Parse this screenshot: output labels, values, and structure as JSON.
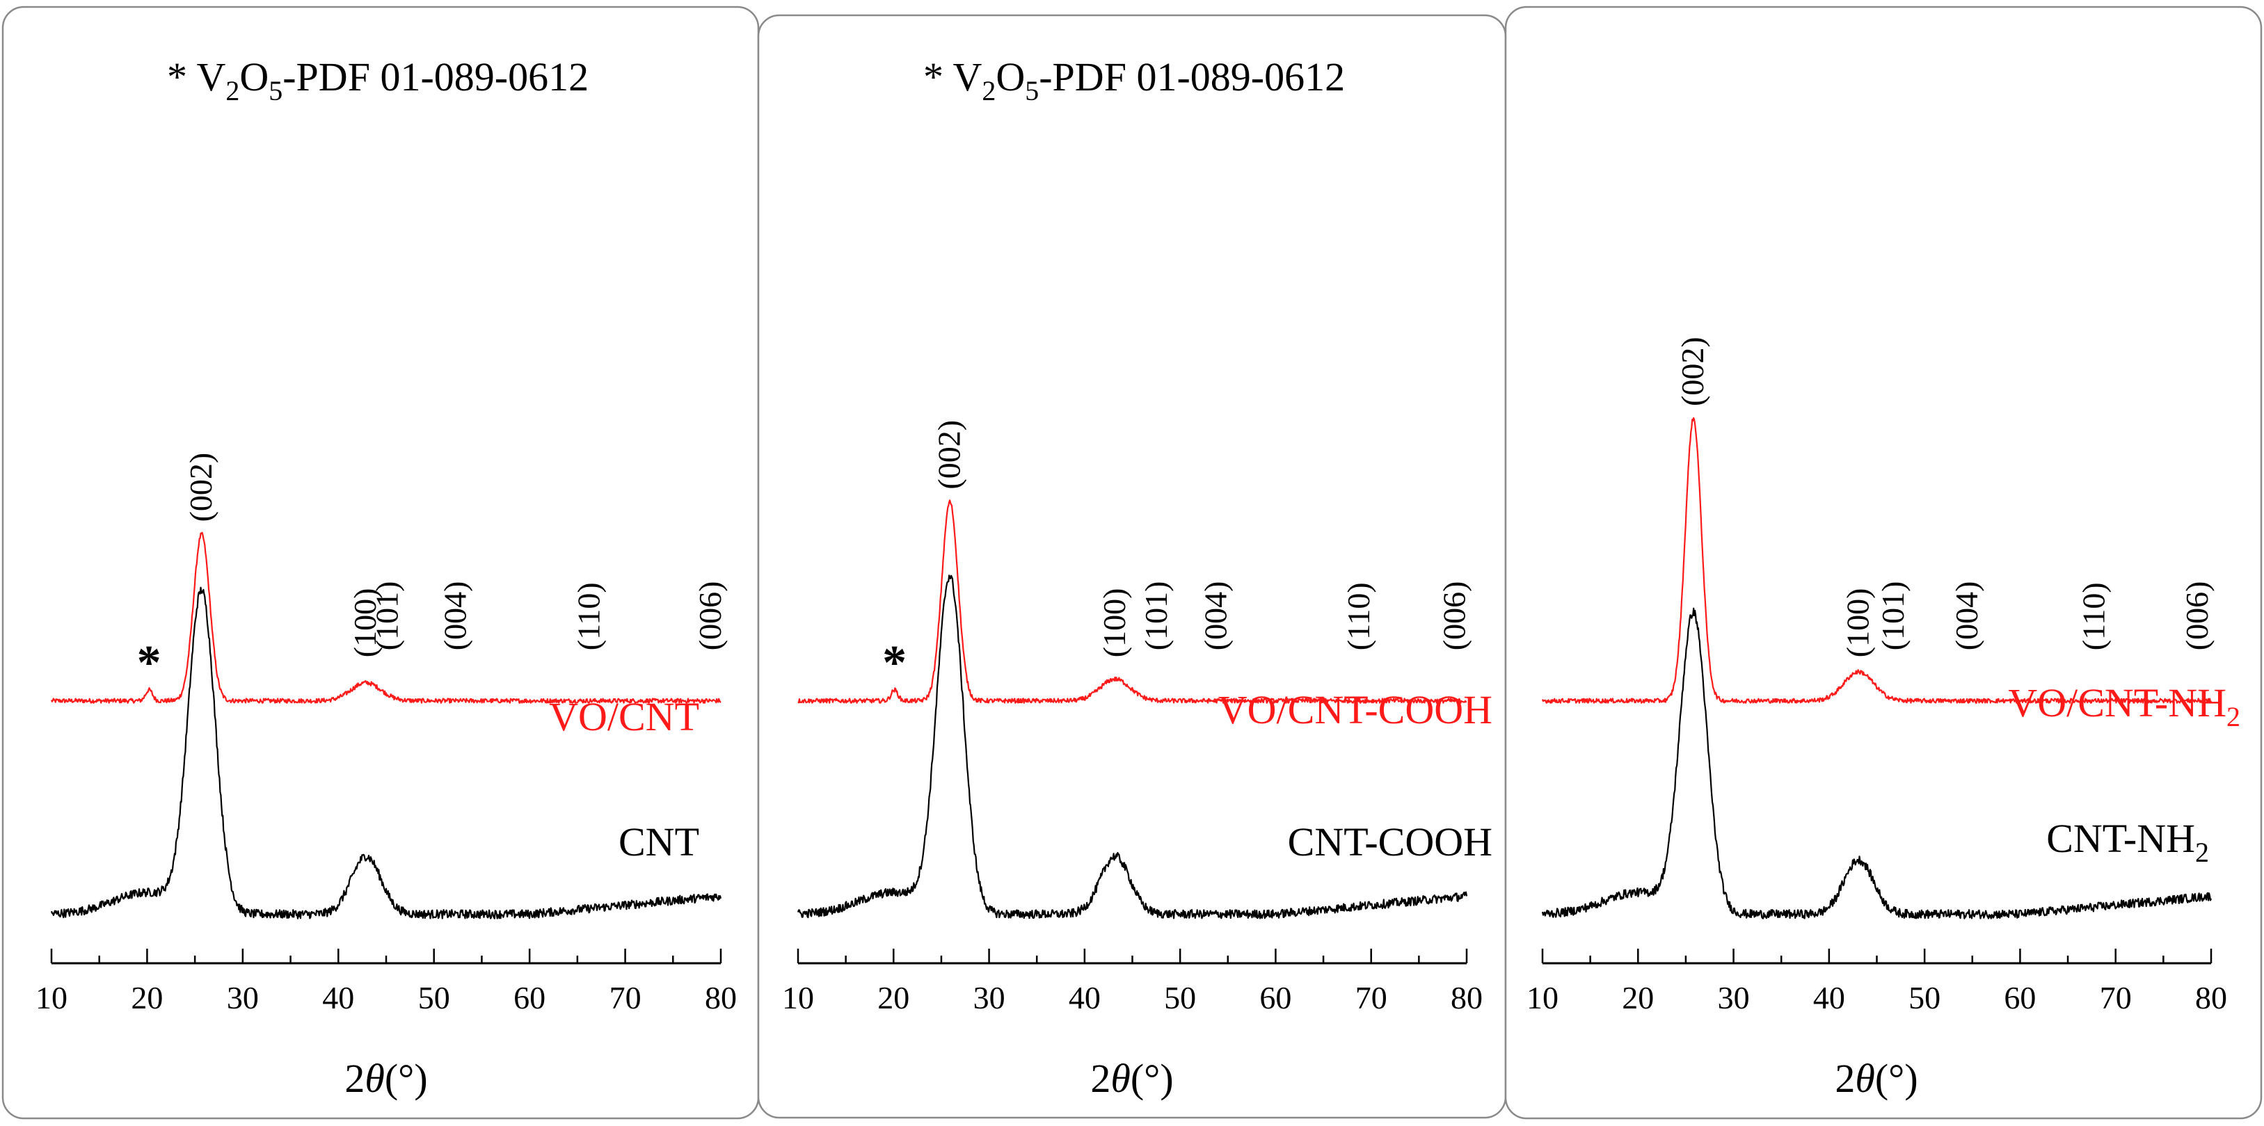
{
  "colors": {
    "vo_trace": "#ff1a1a",
    "cnt_trace": "#000000",
    "frame": "#8a8a8a"
  },
  "chart_data": [
    {
      "type": "line",
      "title": "* V2O5-PDF 01-089-0612",
      "title_parts": {
        "prefix": "* V",
        "sub1": "2",
        "mid": "O",
        "sub2": "5",
        "suffix": "-PDF 01-089-0612"
      },
      "xlabel": "2θ(°)",
      "xlabel_parts": {
        "pre": "2",
        "theta": "θ",
        "post": "(°)"
      },
      "xlim": [
        10,
        80
      ],
      "xticks": [
        10,
        20,
        30,
        40,
        50,
        60,
        70,
        80
      ],
      "series": [
        {
          "name": "VO/CNT",
          "name_parts": {
            "main": "VO/CNT",
            "sub": ""
          },
          "color": "#ff1a1a",
          "offset": 0.62,
          "peak_002": 0.46,
          "peak_100": 0.05,
          "extra": [],
          "noise": 0.006
        },
        {
          "name": "CNT",
          "name_parts": {
            "main": "CNT",
            "sub": ""
          },
          "color": "#000000",
          "offset": 0.0,
          "peak_002": 0.88,
          "peak_100": 0.16,
          "extra": [],
          "noise": 0.012
        }
      ],
      "reflections": [
        {
          "label": "(002)",
          "x": 25.7
        },
        {
          "label": "(100)",
          "x": 42.9
        },
        {
          "label": "(101)",
          "x": 45.2
        },
        {
          "label": "(004)",
          "x": 52.3
        },
        {
          "label": "(110)",
          "x": 66.3
        },
        {
          "label": "(006)",
          "x": 79.0
        }
      ],
      "v2o5_marker": {
        "label": "*",
        "x": 20.2
      }
    },
    {
      "type": "line",
      "title": "* V2O5-PDF 01-089-0612",
      "title_parts": {
        "prefix": "* V",
        "sub1": "2",
        "mid": "O",
        "sub2": "5",
        "suffix": "-PDF 01-089-0612"
      },
      "xlabel": "2θ(°)",
      "xlabel_parts": {
        "pre": "2",
        "theta": "θ",
        "post": "(°)"
      },
      "xlim": [
        10,
        80
      ],
      "xticks": [
        10,
        20,
        30,
        40,
        50,
        60,
        70,
        80
      ],
      "series": [
        {
          "name": "VO/CNT-COOH",
          "name_parts": {
            "main": "VO/CNT-COOH",
            "sub": ""
          },
          "color": "#ff1a1a",
          "offset": 0.62,
          "peak_002": 0.55,
          "peak_100": 0.06,
          "extra": [],
          "noise": 0.006
        },
        {
          "name": "CNT-COOH",
          "name_parts": {
            "main": "CNT-COOH",
            "sub": ""
          },
          "color": "#000000",
          "offset": 0.0,
          "peak_002": 0.92,
          "peak_100": 0.16,
          "extra": [],
          "noise": 0.012
        }
      ],
      "reflections": [
        {
          "label": "(002)",
          "x": 25.9
        },
        {
          "label": "(100)",
          "x": 43.2
        },
        {
          "label": "(101)",
          "x": 47.6
        },
        {
          "label": "(004)",
          "x": 53.8
        },
        {
          "label": "(110)",
          "x": 68.8
        },
        {
          "label": "(006)",
          "x": 78.8
        }
      ],
      "v2o5_marker": {
        "label": "*",
        "x": 20.1
      }
    },
    {
      "type": "line",
      "xlabel": "2θ(°)",
      "xlabel_parts": {
        "pre": "2",
        "theta": "θ",
        "post": "(°)"
      },
      "xlim": [
        10,
        80
      ],
      "xticks": [
        10,
        20,
        30,
        40,
        50,
        60,
        70,
        80
      ],
      "series": [
        {
          "name": "VO/CNT-NH2",
          "name_parts": {
            "main": "VO/CNT-NH",
            "sub": "2"
          },
          "color": "#ff1a1a",
          "offset": 0.62,
          "peak_002": 0.78,
          "peak_100": 0.08,
          "extra": [],
          "noise": 0.006
        },
        {
          "name": "CNT-NH2",
          "name_parts": {
            "main": "CNT-NH",
            "sub": "2"
          },
          "color": "#000000",
          "offset": 0.0,
          "peak_002": 0.82,
          "peak_100": 0.15,
          "extra": [],
          "noise": 0.012
        }
      ],
      "reflections": [
        {
          "label": "(002)",
          "x": 25.8
        },
        {
          "label": "(100)",
          "x": 43.1
        },
        {
          "label": "(101)",
          "x": 46.8
        },
        {
          "label": "(004)",
          "x": 54.5
        },
        {
          "label": "(110)",
          "x": 67.8
        },
        {
          "label": "(006)",
          "x": 78.6
        }
      ]
    }
  ]
}
